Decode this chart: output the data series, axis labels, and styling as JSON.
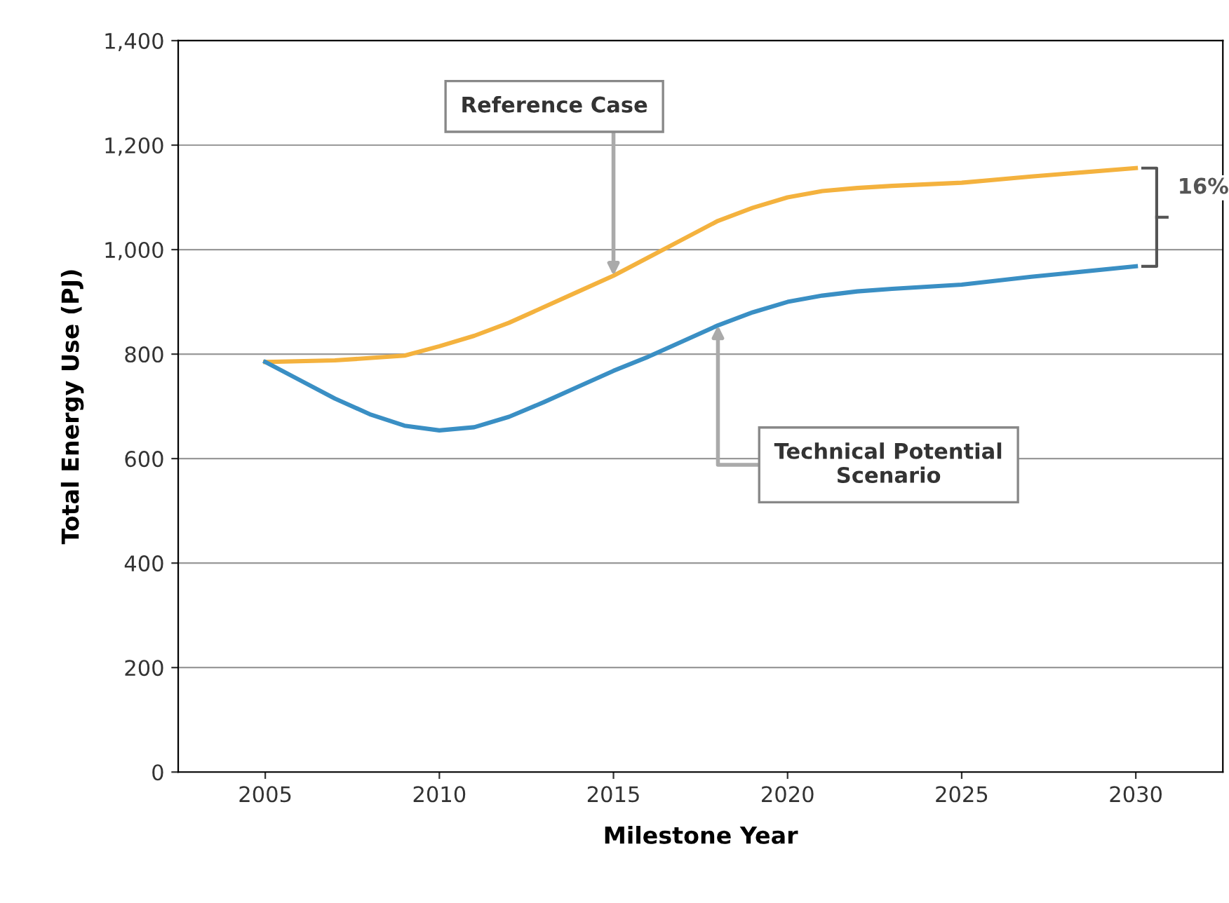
{
  "chart_data": {
    "type": "line",
    "xlabel": "Milestone Year",
    "ylabel": "Total Energy Use (PJ)",
    "series": [
      {
        "color": "#f4b23e",
        "x": [
          2005,
          2007,
          2009,
          2010,
          2011,
          2012,
          2013,
          2014,
          2015,
          2016,
          2017,
          2018,
          2019,
          2020,
          2021,
          2022,
          2023,
          2025,
          2027,
          2030
        ],
        "values": [
          785,
          788,
          797,
          815,
          835,
          860,
          890,
          920,
          950,
          985,
          1020,
          1055,
          1080,
          1100,
          1112,
          1118,
          1122,
          1128,
          1140,
          1156
        ]
      },
      {
        "color": "#3a8fc4",
        "x": [
          2005,
          2006,
          2007,
          2008,
          2009,
          2010,
          2011,
          2012,
          2013,
          2014,
          2015,
          2016,
          2017,
          2018,
          2019,
          2020,
          2021,
          2022,
          2023,
          2025,
          2027,
          2030
        ],
        "values": [
          785,
          750,
          715,
          685,
          663,
          654,
          660,
          680,
          708,
          738,
          768,
          795,
          825,
          855,
          880,
          900,
          912,
          920,
          925,
          933,
          948,
          968
        ]
      }
    ],
    "xlim": [
      2002.5,
      2032.5
    ],
    "xticks": [
      2005,
      2010,
      2015,
      2020,
      2025,
      2030
    ],
    "ylim": [
      0,
      1400
    ],
    "yticks": [
      0,
      200,
      400,
      600,
      800,
      {
        "value": 1000,
        "label": "1,000"
      },
      {
        "value": 1200,
        "label": "1,200"
      },
      {
        "value": 1400,
        "label": "1,400"
      }
    ],
    "grid": "y",
    "marker": "none",
    "line_style": "solid",
    "annotations": [
      {
        "text": "Reference Case",
        "x": 2015,
        "y": 950
      },
      {
        "text": "Technical Potential\nScenario",
        "x": 2018,
        "y": 855
      },
      "16%"
    ]
  }
}
